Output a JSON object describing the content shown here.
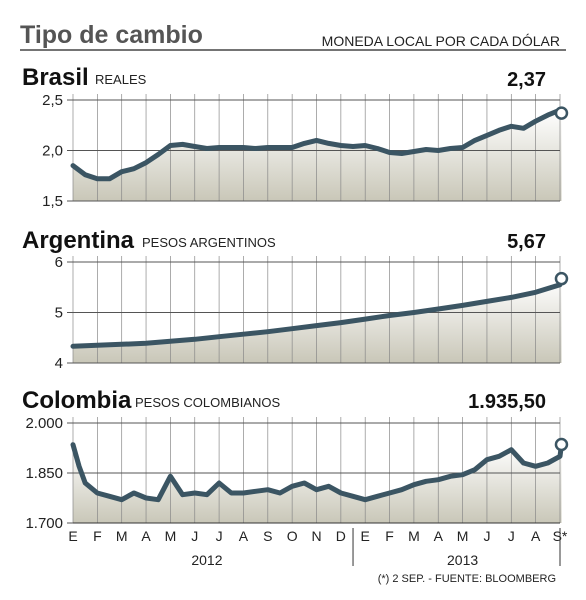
{
  "header": {
    "title": "Tipo de cambio",
    "subtitle": "MONEDA LOCAL POR CADA DÓLAR"
  },
  "footer": {
    "note": "(*) 2 SEP. - FUENTE: BLOOMBERG"
  },
  "colors": {
    "line": "#3b5563",
    "fill_top": "#c9c7b8",
    "grid": "#888888",
    "text": "#111111",
    "title_gray": "#555555"
  },
  "chart_data": [
    {
      "type": "area",
      "title": "Brasil",
      "subtitle": "REALES",
      "last_value_label": "2,37",
      "ylim": [
        1.5,
        2.5
      ],
      "yticks": [
        2.5,
        2.0,
        1.5
      ],
      "ytick_labels": [
        "2,5",
        "2,0",
        "1,5"
      ],
      "x_months": [
        "E",
        "F",
        "M",
        "A",
        "M",
        "J",
        "J",
        "A",
        "S",
        "O",
        "N",
        "D",
        "E",
        "F",
        "M",
        "A",
        "M",
        "J",
        "J",
        "A",
        "S*"
      ],
      "x_years": [
        "2012",
        "2013"
      ],
      "x": [
        0,
        0.5,
        1,
        1.5,
        2,
        2.5,
        3,
        3.5,
        4,
        4.5,
        5,
        5.5,
        6,
        6.5,
        7,
        7.5,
        8,
        8.5,
        9,
        9.5,
        10,
        10.5,
        11,
        11.5,
        12,
        12.5,
        13,
        13.5,
        14,
        14.5,
        15,
        15.5,
        16,
        16.5,
        17,
        17.5,
        18,
        18.5,
        19,
        19.5,
        20,
        20.06
      ],
      "values": [
        1.85,
        1.76,
        1.72,
        1.72,
        1.79,
        1.82,
        1.88,
        1.96,
        2.05,
        2.06,
        2.04,
        2.02,
        2.03,
        2.03,
        2.03,
        2.02,
        2.03,
        2.03,
        2.03,
        2.07,
        2.1,
        2.07,
        2.05,
        2.04,
        2.05,
        2.02,
        1.98,
        1.97,
        1.99,
        2.01,
        2.0,
        2.02,
        2.03,
        2.1,
        2.15,
        2.2,
        2.24,
        2.22,
        2.29,
        2.35,
        2.4,
        2.37
      ]
    },
    {
      "type": "area",
      "title": "Argentina",
      "subtitle": "PESOS ARGENTINOS",
      "last_value_label": "5,67",
      "ylim": [
        4,
        6
      ],
      "yticks": [
        6,
        5,
        4
      ],
      "ytick_labels": [
        "6",
        "5",
        "4"
      ],
      "x_months": [
        "E",
        "F",
        "M",
        "A",
        "M",
        "J",
        "J",
        "A",
        "S",
        "O",
        "N",
        "D",
        "E",
        "F",
        "M",
        "A",
        "M",
        "J",
        "J",
        "A",
        "S*"
      ],
      "x_years": [
        "2012",
        "2013"
      ],
      "x": [
        0,
        1,
        2,
        3,
        4,
        5,
        6,
        7,
        8,
        9,
        10,
        11,
        12,
        13,
        14,
        15,
        16,
        17,
        18,
        19,
        20,
        20.06
      ],
      "values": [
        4.33,
        4.35,
        4.37,
        4.39,
        4.43,
        4.47,
        4.52,
        4.57,
        4.62,
        4.68,
        4.74,
        4.8,
        4.87,
        4.94,
        5.0,
        5.07,
        5.14,
        5.22,
        5.3,
        5.4,
        5.55,
        5.67
      ]
    },
    {
      "type": "area",
      "title": "Colombia",
      "subtitle": "PESOS COLOMBIANOS",
      "last_value_label": "1.935,50",
      "ylim": [
        1700,
        2000
      ],
      "yticks": [
        2000,
        1850,
        1700
      ],
      "ytick_labels": [
        "2.000",
        "1.850",
        "1.700"
      ],
      "x_months": [
        "E",
        "F",
        "M",
        "A",
        "M",
        "J",
        "J",
        "A",
        "S",
        "O",
        "N",
        "D",
        "E",
        "F",
        "M",
        "A",
        "M",
        "J",
        "J",
        "A",
        "S*"
      ],
      "x_years": [
        "2012",
        "2013"
      ],
      "x": [
        0,
        0.25,
        0.5,
        1,
        1.5,
        2,
        2.5,
        3,
        3.5,
        4,
        4.5,
        5,
        5.5,
        6,
        6.5,
        7,
        7.5,
        8,
        8.5,
        9,
        9.5,
        10,
        10.5,
        11,
        11.5,
        12,
        12.5,
        13,
        13.5,
        14,
        14.5,
        15,
        15.5,
        16,
        16.5,
        17,
        17.5,
        18,
        18.5,
        19,
        19.5,
        20,
        20.06
      ],
      "values": [
        1935,
        1870,
        1820,
        1790,
        1780,
        1770,
        1790,
        1775,
        1770,
        1840,
        1785,
        1790,
        1785,
        1820,
        1790,
        1790,
        1795,
        1800,
        1790,
        1810,
        1820,
        1800,
        1810,
        1790,
        1780,
        1770,
        1780,
        1790,
        1800,
        1815,
        1825,
        1830,
        1840,
        1845,
        1860,
        1890,
        1900,
        1920,
        1880,
        1870,
        1880,
        1900,
        1935.5
      ]
    }
  ]
}
